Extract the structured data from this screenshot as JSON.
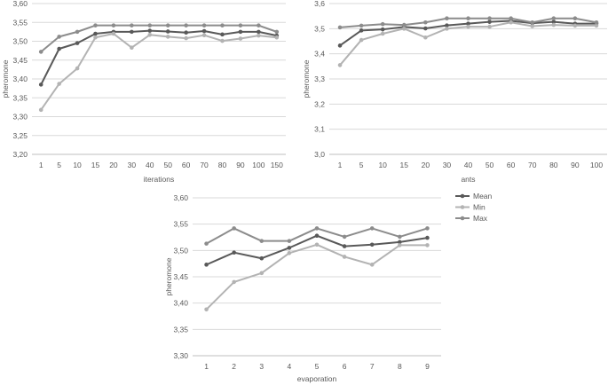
{
  "chart_data": [
    {
      "type": "line",
      "xlabel": "iterations",
      "ylabel": "pheromone",
      "ylim": [
        3.2,
        3.6
      ],
      "ytick_step": 0.05,
      "grid": "horizontal",
      "legend": "none",
      "categories": [
        "1",
        "5",
        "10",
        "15",
        "20",
        "30",
        "40",
        "50",
        "60",
        "70",
        "80",
        "90",
        "100",
        "150"
      ],
      "series": [
        {
          "name": "Mean",
          "color": "#595959",
          "values": [
            3.385,
            3.48,
            3.495,
            3.52,
            3.525,
            3.525,
            3.528,
            3.526,
            3.523,
            3.527,
            3.518,
            3.525,
            3.525,
            3.515
          ]
        },
        {
          "name": "Min",
          "color": "#b3b3b3",
          "values": [
            3.318,
            3.387,
            3.428,
            3.51,
            3.52,
            3.483,
            3.517,
            3.512,
            3.508,
            3.516,
            3.501,
            3.507,
            3.515,
            3.51
          ]
        },
        {
          "name": "Max",
          "color": "#8c8c8c",
          "values": [
            3.472,
            3.512,
            3.525,
            3.542,
            3.542,
            3.542,
            3.542,
            3.542,
            3.542,
            3.542,
            3.542,
            3.542,
            3.542,
            3.525
          ]
        }
      ]
    },
    {
      "type": "line",
      "xlabel": "ants",
      "ylabel": "pheromone",
      "ylim": [
        3.0,
        3.6
      ],
      "ytick_step": 0.1,
      "grid": "horizontal",
      "legend": "none",
      "categories": [
        "1",
        "5",
        "10",
        "15",
        "20",
        "30",
        "40",
        "50",
        "60",
        "70",
        "80",
        "90",
        "100"
      ],
      "series": [
        {
          "name": "Mean",
          "color": "#595959",
          "values": [
            3.433,
            3.493,
            3.497,
            3.507,
            3.501,
            3.513,
            3.52,
            3.527,
            3.531,
            3.522,
            3.527,
            3.52,
            3.52
          ]
        },
        {
          "name": "Min",
          "color": "#b3b3b3",
          "values": [
            3.355,
            3.455,
            3.48,
            3.5,
            3.465,
            3.5,
            3.508,
            3.508,
            3.525,
            3.51,
            3.515,
            3.512,
            3.512
          ]
        },
        {
          "name": "Max",
          "color": "#8c8c8c",
          "values": [
            3.505,
            3.512,
            3.518,
            3.515,
            3.525,
            3.541,
            3.541,
            3.541,
            3.541,
            3.525,
            3.541,
            3.541,
            3.525
          ]
        }
      ]
    },
    {
      "type": "line",
      "xlabel": "evaporation",
      "ylabel": "pheromone",
      "ylim": [
        3.3,
        3.6
      ],
      "ytick_step": 0.05,
      "grid": "horizontal",
      "legend": "right",
      "categories": [
        "1",
        "2",
        "3",
        "4",
        "5",
        "6",
        "7",
        "8",
        "9"
      ],
      "series": [
        {
          "name": "Mean",
          "color": "#595959",
          "values": [
            3.473,
            3.496,
            3.485,
            3.505,
            3.528,
            3.508,
            3.511,
            3.516,
            3.524
          ]
        },
        {
          "name": "Min",
          "color": "#b3b3b3",
          "values": [
            3.388,
            3.44,
            3.457,
            3.495,
            3.511,
            3.488,
            3.473,
            3.51,
            3.51
          ]
        },
        {
          "name": "Max",
          "color": "#8c8c8c",
          "values": [
            3.513,
            3.542,
            3.518,
            3.518,
            3.542,
            3.526,
            3.542,
            3.526,
            3.542
          ]
        }
      ]
    }
  ]
}
